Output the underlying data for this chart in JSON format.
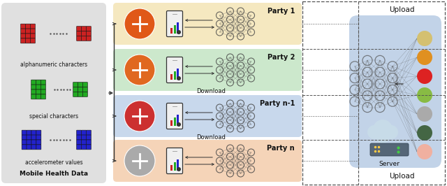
{
  "fig_width": 6.4,
  "fig_height": 2.66,
  "dpi": 100,
  "left_panel_bg": "#e0e0e0",
  "party_bgs": [
    "#f5e8c0",
    "#cce8cc",
    "#c8d8ec",
    "#f5d4b8"
  ],
  "party_labels": [
    "Party 1",
    "Party 2",
    "Party n-1",
    "Party n"
  ],
  "server_bg": "#b8cce4",
  "cube_colors_red": "#cc2222",
  "cube_colors_green": "#22aa22",
  "cube_colors_blue": "#2222cc",
  "data_labels": [
    "alphanumeric characters",
    "special characters",
    "accelerometer values"
  ],
  "mobile_data_label": "Mobile Health Data",
  "server_label": "Server",
  "upload_label": "Upload",
  "download_label": "Download"
}
